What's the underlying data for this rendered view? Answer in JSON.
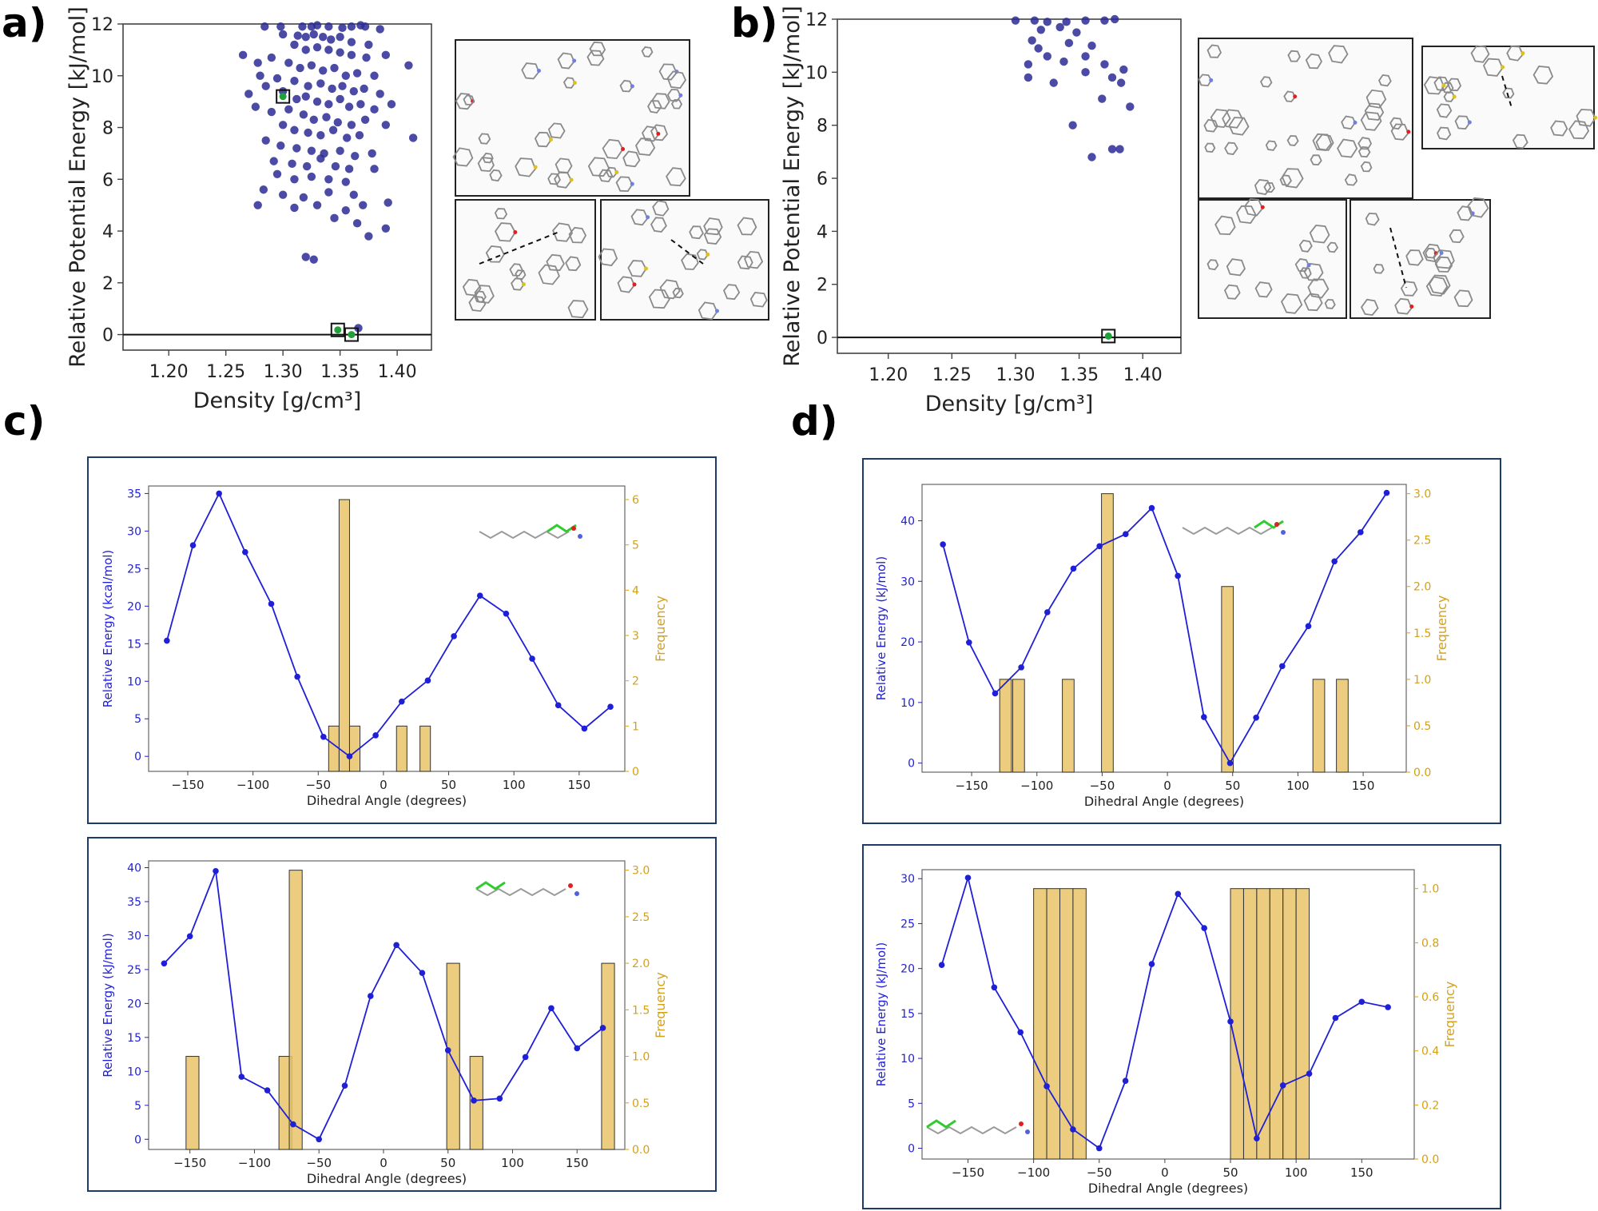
{
  "panels": {
    "a": "a)",
    "b": "b)",
    "c": "c)",
    "d": "d)"
  },
  "colors": {
    "scatter": "#2b2b96",
    "highlight": "#22a03a",
    "energy": "#1f1fd8",
    "bars": "#e9c46a",
    "bar_edge": "#b38a1a",
    "freq_axis": "#d4a017",
    "frame": "#1e3a6b"
  },
  "inset_icons": {
    "a": [
      "crystal-packing-image",
      "hbond-contact-image",
      "stacking-contact-image"
    ],
    "b": [
      "crystal-packing-image",
      "ring-stacking-image",
      "hbond-contact-image",
      "stacking-contact-image"
    ],
    "molecules": [
      "molecule-structure-image"
    ]
  },
  "chart_data": [
    {
      "id": "a",
      "type": "scatter",
      "xlabel": "Density [g/cm³]",
      "ylabel": "Relative Potential Energy [kJ/mol]",
      "xlim": [
        1.16,
        1.43
      ],
      "ylim": [
        -0.6,
        12
      ],
      "xticks": [
        "1.20",
        "1.25",
        "1.30",
        "1.35",
        "1.40"
      ],
      "xtick_values": [
        1.2,
        1.25,
        1.3,
        1.35,
        1.4
      ],
      "yticks": [
        "0",
        "2",
        "4",
        "6",
        "8",
        "10",
        "12"
      ],
      "ytick_values": [
        0,
        2,
        4,
        6,
        8,
        10,
        12
      ],
      "hline": 0,
      "points": [
        [
          1.284,
          11.9
        ],
        [
          1.298,
          11.9
        ],
        [
          1.317,
          11.9
        ],
        [
          1.325,
          11.9
        ],
        [
          1.33,
          11.95
        ],
        [
          1.34,
          11.9
        ],
        [
          1.352,
          11.85
        ],
        [
          1.36,
          11.9
        ],
        [
          1.368,
          11.95
        ],
        [
          1.372,
          11.9
        ],
        [
          1.385,
          11.8
        ],
        [
          1.3,
          11.6
        ],
        [
          1.313,
          11.55
        ],
        [
          1.32,
          11.5
        ],
        [
          1.327,
          11.6
        ],
        [
          1.335,
          11.5
        ],
        [
          1.342,
          11.4
        ],
        [
          1.35,
          11.5
        ],
        [
          1.36,
          11.3
        ],
        [
          1.375,
          11.2
        ],
        [
          1.31,
          11.2
        ],
        [
          1.32,
          11.0
        ],
        [
          1.33,
          11.1
        ],
        [
          1.34,
          11.0
        ],
        [
          1.35,
          10.9
        ],
        [
          1.36,
          10.8
        ],
        [
          1.373,
          10.7
        ],
        [
          1.39,
          10.8
        ],
        [
          1.265,
          10.8
        ],
        [
          1.278,
          10.5
        ],
        [
          1.29,
          10.7
        ],
        [
          1.305,
          10.5
        ],
        [
          1.315,
          10.3
        ],
        [
          1.325,
          10.4
        ],
        [
          1.335,
          10.2
        ],
        [
          1.345,
          10.3
        ],
        [
          1.355,
          10.0
        ],
        [
          1.365,
          10.1
        ],
        [
          1.38,
          10.0
        ],
        [
          1.41,
          10.4
        ],
        [
          1.28,
          10.0
        ],
        [
          1.295,
          9.9
        ],
        [
          1.31,
          9.8
        ],
        [
          1.322,
          9.6
        ],
        [
          1.333,
          9.7
        ],
        [
          1.343,
          9.5
        ],
        [
          1.352,
          9.6
        ],
        [
          1.362,
          9.4
        ],
        [
          1.371,
          9.5
        ],
        [
          1.385,
          9.3
        ],
        [
          1.27,
          9.3
        ],
        [
          1.285,
          9.6
        ],
        [
          1.3,
          9.4
        ],
        [
          1.312,
          9.1
        ],
        [
          1.32,
          9.2
        ],
        [
          1.33,
          9.0
        ],
        [
          1.34,
          8.9
        ],
        [
          1.35,
          9.1
        ],
        [
          1.358,
          8.8
        ],
        [
          1.368,
          8.9
        ],
        [
          1.38,
          8.7
        ],
        [
          1.395,
          8.9
        ],
        [
          1.276,
          8.8
        ],
        [
          1.29,
          8.6
        ],
        [
          1.305,
          8.7
        ],
        [
          1.318,
          8.5
        ],
        [
          1.327,
          8.3
        ],
        [
          1.338,
          8.4
        ],
        [
          1.348,
          8.2
        ],
        [
          1.36,
          8.1
        ],
        [
          1.372,
          8.3
        ],
        [
          1.39,
          8.1
        ],
        [
          1.3,
          8.1
        ],
        [
          1.31,
          7.9
        ],
        [
          1.322,
          7.8
        ],
        [
          1.333,
          7.7
        ],
        [
          1.344,
          7.9
        ],
        [
          1.356,
          7.6
        ],
        [
          1.367,
          7.7
        ],
        [
          1.414,
          7.6
        ],
        [
          1.285,
          7.5
        ],
        [
          1.298,
          7.3
        ],
        [
          1.312,
          7.2
        ],
        [
          1.325,
          7.1
        ],
        [
          1.336,
          7.0
        ],
        [
          1.35,
          7.1
        ],
        [
          1.363,
          6.9
        ],
        [
          1.378,
          7.0
        ],
        [
          1.292,
          6.7
        ],
        [
          1.308,
          6.6
        ],
        [
          1.321,
          6.5
        ],
        [
          1.333,
          6.8
        ],
        [
          1.346,
          6.5
        ],
        [
          1.358,
          6.4
        ],
        [
          1.38,
          6.4
        ],
        [
          1.295,
          6.2
        ],
        [
          1.31,
          6.0
        ],
        [
          1.325,
          6.1
        ],
        [
          1.34,
          6.0
        ],
        [
          1.355,
          5.9
        ],
        [
          1.283,
          5.6
        ],
        [
          1.3,
          5.4
        ],
        [
          1.318,
          5.3
        ],
        [
          1.34,
          5.5
        ],
        [
          1.362,
          5.4
        ],
        [
          1.392,
          5.1
        ],
        [
          1.278,
          5.0
        ],
        [
          1.31,
          4.9
        ],
        [
          1.33,
          5.0
        ],
        [
          1.355,
          4.8
        ],
        [
          1.37,
          5.0
        ],
        [
          1.345,
          4.5
        ],
        [
          1.365,
          4.3
        ],
        [
          1.39,
          4.1
        ],
        [
          1.375,
          3.8
        ],
        [
          1.32,
          3.0
        ],
        [
          1.327,
          2.9
        ],
        [
          1.366,
          0.25
        ]
      ],
      "highlighted": [
        [
          1.3,
          9.2
        ],
        [
          1.348,
          0.18
        ],
        [
          1.36,
          0.0
        ]
      ]
    },
    {
      "id": "b",
      "type": "scatter",
      "xlabel": "Density [g/cm³]",
      "ylabel": "Relative Potential Energy [kJ/mol]",
      "xlim": [
        1.16,
        1.43
      ],
      "ylim": [
        -0.6,
        12
      ],
      "xticks": [
        "1.20",
        "1.25",
        "1.30",
        "1.35",
        "1.40"
      ],
      "xtick_values": [
        1.2,
        1.25,
        1.3,
        1.35,
        1.4
      ],
      "yticks": [
        "0",
        "2",
        "4",
        "6",
        "8",
        "10",
        "12"
      ],
      "ytick_values": [
        0,
        2,
        4,
        6,
        8,
        10,
        12
      ],
      "hline": 0,
      "points": [
        [
          1.3,
          11.95
        ],
        [
          1.315,
          11.95
        ],
        [
          1.325,
          11.9
        ],
        [
          1.34,
          11.9
        ],
        [
          1.355,
          11.95
        ],
        [
          1.37,
          11.95
        ],
        [
          1.378,
          12.0
        ],
        [
          1.32,
          11.6
        ],
        [
          1.335,
          11.7
        ],
        [
          1.348,
          11.5
        ],
        [
          1.313,
          11.2
        ],
        [
          1.318,
          10.9
        ],
        [
          1.342,
          11.1
        ],
        [
          1.36,
          11.0
        ],
        [
          1.325,
          10.6
        ],
        [
          1.355,
          10.6
        ],
        [
          1.31,
          10.3
        ],
        [
          1.338,
          10.4
        ],
        [
          1.37,
          10.3
        ],
        [
          1.385,
          10.1
        ],
        [
          1.355,
          10.0
        ],
        [
          1.31,
          9.8
        ],
        [
          1.376,
          9.8
        ],
        [
          1.33,
          9.6
        ],
        [
          1.383,
          9.6
        ],
        [
          1.368,
          9.0
        ],
        [
          1.39,
          8.7
        ],
        [
          1.345,
          8.0
        ],
        [
          1.376,
          7.1
        ],
        [
          1.382,
          7.1
        ],
        [
          1.36,
          6.8
        ]
      ],
      "highlighted": [
        [
          1.373,
          0.05
        ]
      ]
    },
    {
      "id": "c-top",
      "type": "bar+line",
      "xlabel": "Dihedral Angle (degrees)",
      "ylabel": "Relative Energy (kcal/mol)",
      "ylabel2": "Frequency",
      "xlim": [
        -180,
        185
      ],
      "ylim": [
        -2,
        36
      ],
      "ylim2": [
        0,
        6.3
      ],
      "xticks": [
        "−150",
        "−100",
        "−50",
        "0",
        "50",
        "100",
        "150"
      ],
      "xtick_values": [
        -150,
        -100,
        -50,
        0,
        50,
        100,
        150
      ],
      "yticks": [
        "0",
        "5",
        "10",
        "15",
        "20",
        "25",
        "30",
        "35"
      ],
      "ytick_values": [
        0,
        5,
        10,
        15,
        20,
        25,
        30,
        35
      ],
      "y2ticks": [
        "0",
        "1",
        "2",
        "3",
        "4",
        "5",
        "6"
      ],
      "y2tick_values": [
        0,
        1,
        2,
        3,
        4,
        5,
        6
      ],
      "line_x": [
        -166,
        -146,
        -126,
        -106,
        -86,
        -66,
        -46,
        -26,
        -6,
        14,
        34,
        54,
        74,
        94,
        114,
        134,
        154,
        174
      ],
      "line_y": [
        15.4,
        28.1,
        35.0,
        27.2,
        20.3,
        10.6,
        2.6,
        0.0,
        2.8,
        7.3,
        10.1,
        16.0,
        21.4,
        19.0,
        13.0,
        6.8,
        3.7,
        6.6
      ],
      "bars": [
        {
          "x": -38,
          "h": 1
        },
        {
          "x": -30,
          "h": 6
        },
        {
          "x": -22,
          "h": 1
        },
        {
          "x": 14,
          "h": 1
        },
        {
          "x": 32,
          "h": 1
        }
      ],
      "bar_width": 8
    },
    {
      "id": "c-bottom",
      "type": "bar+line",
      "xlabel": "Dihedral Angle (degrees)",
      "ylabel": "Relative Energy (kJ/mol)",
      "ylabel2": "Frequency",
      "xlim": [
        -182,
        187
      ],
      "ylim": [
        -1.5,
        41
      ],
      "ylim2": [
        0,
        3.1
      ],
      "xticks": [
        "−150",
        "−100",
        "−50",
        "0",
        "50",
        "100",
        "150"
      ],
      "xtick_values": [
        -150,
        -100,
        -50,
        0,
        50,
        100,
        150
      ],
      "yticks": [
        "0",
        "5",
        "10",
        "15",
        "20",
        "25",
        "30",
        "35",
        "40"
      ],
      "ytick_values": [
        0,
        5,
        10,
        15,
        20,
        25,
        30,
        35,
        40
      ],
      "y2ticks": [
        "0.0",
        "0.5",
        "1.0",
        "1.5",
        "2.0",
        "2.5",
        "3.0"
      ],
      "y2tick_values": [
        0,
        0.5,
        1.0,
        1.5,
        2.0,
        2.5,
        3.0
      ],
      "line_x": [
        -170,
        -150,
        -130,
        -110,
        -90,
        -70,
        -50,
        -30,
        -10,
        10,
        30,
        50,
        70,
        90,
        110,
        130,
        150,
        170
      ],
      "line_y": [
        25.9,
        29.9,
        39.5,
        9.2,
        7.2,
        2.2,
        0.0,
        7.9,
        21.1,
        28.6,
        24.5,
        13.1,
        5.7,
        6.0,
        12.1,
        19.3,
        13.4,
        16.4
      ],
      "bars": [
        {
          "x": -148,
          "h": 1
        },
        {
          "x": -76,
          "h": 1
        },
        {
          "x": -68,
          "h": 3
        },
        {
          "x": 54,
          "h": 2
        },
        {
          "x": 72,
          "h": 1
        },
        {
          "x": 174,
          "h": 2
        }
      ],
      "bar_width": 10
    },
    {
      "id": "d-top",
      "type": "bar+line",
      "xlabel": "Dihedral Angle (degrees)",
      "ylabel": "Relative Energy (kJ/mol)",
      "ylabel2": "Frequency",
      "xlim": [
        -188,
        183
      ],
      "ylim": [
        -1.5,
        46
      ],
      "ylim2": [
        0,
        3.1
      ],
      "xticks": [
        "−150",
        "−100",
        "−50",
        "0",
        "50",
        "100",
        "150"
      ],
      "xtick_values": [
        -150,
        -100,
        -50,
        0,
        50,
        100,
        150
      ],
      "yticks": [
        "0",
        "10",
        "20",
        "30",
        "40"
      ],
      "ytick_values": [
        0,
        10,
        20,
        30,
        40
      ],
      "y2ticks": [
        "0.0",
        "0.5",
        "1.0",
        "1.5",
        "2.0",
        "2.5",
        "3.0"
      ],
      "y2tick_values": [
        0,
        0.5,
        1.0,
        1.5,
        2.0,
        2.5,
        3.0
      ],
      "line_x": [
        -172,
        -152,
        -132,
        -112,
        -92,
        -72,
        -52,
        -32,
        -12,
        8,
        28,
        48,
        68,
        88,
        108,
        128,
        148,
        168
      ],
      "line_y": [
        36.1,
        19.9,
        11.5,
        15.8,
        24.9,
        32.1,
        35.8,
        37.8,
        42.1,
        30.9,
        7.6,
        0.0,
        7.5,
        16.0,
        22.6,
        33.3,
        38.1,
        44.6
      ],
      "bars": [
        {
          "x": -124,
          "h": 1
        },
        {
          "x": -114,
          "h": 1
        },
        {
          "x": -76,
          "h": 1
        },
        {
          "x": -46,
          "h": 3
        },
        {
          "x": 46,
          "h": 2
        },
        {
          "x": 116,
          "h": 1
        },
        {
          "x": 134,
          "h": 1
        }
      ],
      "bar_width": 9
    },
    {
      "id": "d-bottom",
      "type": "bar+line",
      "xlabel": "Dihedral Angle (degrees)",
      "ylabel": "Relative Energy (kJ/mol)",
      "ylabel2": "Frequency",
      "xlim": [
        -185,
        190
      ],
      "ylim": [
        -1.2,
        31
      ],
      "ylim2": [
        0,
        1.07
      ],
      "xticks": [
        "−150",
        "−100",
        "−50",
        "0",
        "50",
        "100",
        "150"
      ],
      "xtick_values": [
        -150,
        -100,
        -50,
        0,
        50,
        100,
        150
      ],
      "yticks": [
        "0",
        "5",
        "10",
        "15",
        "20",
        "25",
        "30"
      ],
      "ytick_values": [
        0,
        5,
        10,
        15,
        20,
        25,
        30
      ],
      "y2ticks": [
        "0.0",
        "0.2",
        "0.4",
        "0.6",
        "0.8",
        "1.0"
      ],
      "y2tick_values": [
        0,
        0.2,
        0.4,
        0.6,
        0.8,
        1.0
      ],
      "line_x": [
        -170,
        -150,
        -130,
        -110,
        -90,
        -70,
        -50,
        -30,
        -10,
        10,
        30,
        50,
        70,
        90,
        110,
        130,
        150,
        170
      ],
      "line_y": [
        20.4,
        30.1,
        17.9,
        12.9,
        6.9,
        2.1,
        0.0,
        7.5,
        20.5,
        28.3,
        24.5,
        14.1,
        1.1,
        7.0,
        8.3,
        14.5,
        16.3,
        15.7
      ],
      "bars": [
        {
          "x": -95,
          "h": 1
        },
        {
          "x": -85,
          "h": 1
        },
        {
          "x": -75,
          "h": 1
        },
        {
          "x": -65,
          "h": 1
        },
        {
          "x": 55,
          "h": 1
        },
        {
          "x": 65,
          "h": 1
        },
        {
          "x": 75,
          "h": 1
        },
        {
          "x": 85,
          "h": 1
        },
        {
          "x": 95,
          "h": 1
        },
        {
          "x": 105,
          "h": 1
        }
      ],
      "bar_width": 10
    }
  ]
}
